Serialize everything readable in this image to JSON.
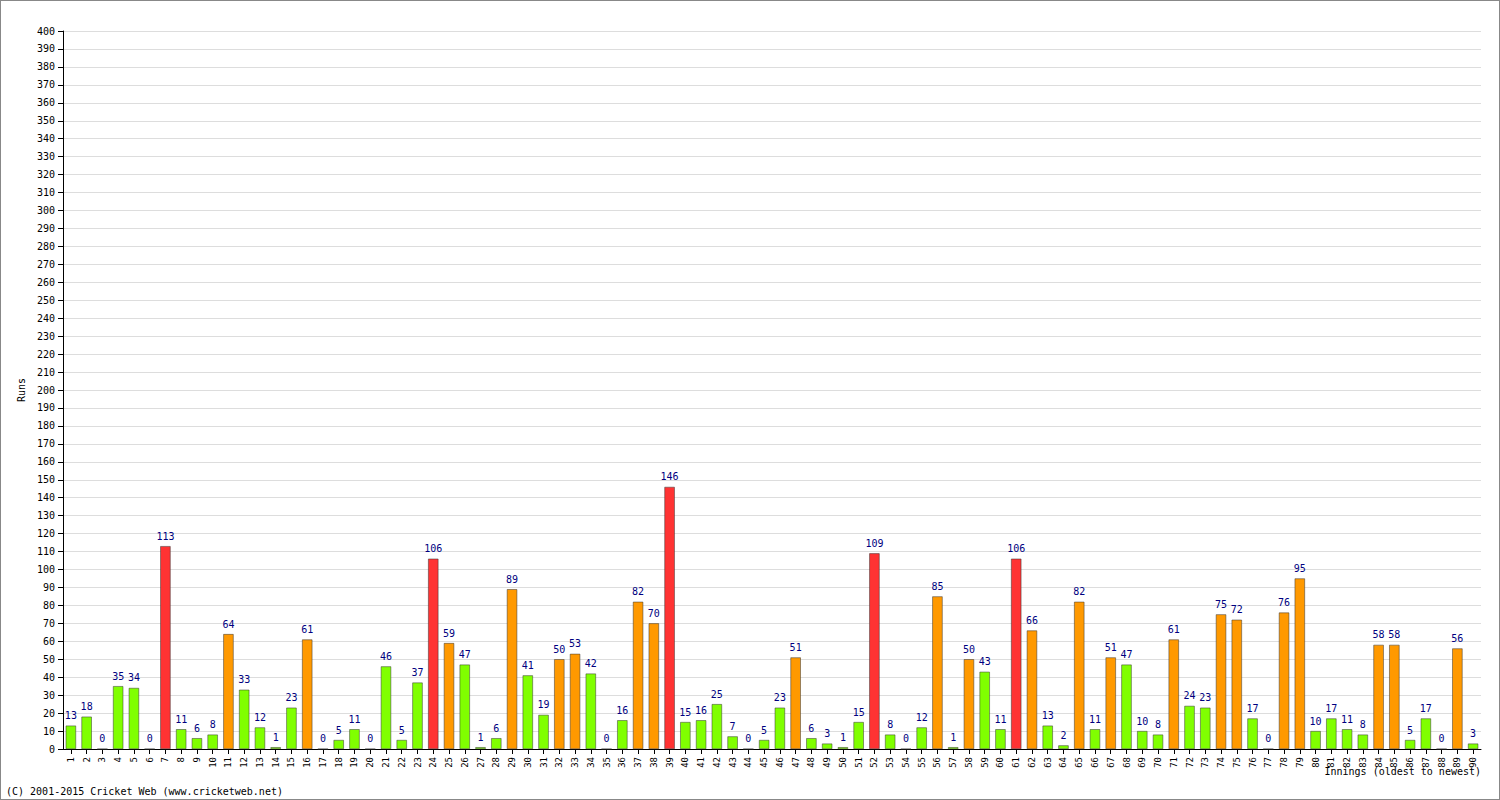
{
  "chart_data": {
    "type": "bar",
    "x_label": "Innings (oldest to newest)",
    "y_label": "Runs",
    "annotations": [
      "(C) 2001-2015 Cricket Web (www.cricketweb.net)"
    ],
    "categories": [
      "1",
      "2",
      "3",
      "4",
      "5",
      "6",
      "7",
      "8",
      "9",
      "10",
      "11",
      "12",
      "13",
      "14",
      "15",
      "16",
      "17",
      "18",
      "19",
      "20",
      "21",
      "22",
      "23",
      "24",
      "25",
      "26",
      "27",
      "28",
      "29",
      "30",
      "31",
      "32",
      "33",
      "34",
      "35",
      "36",
      "37",
      "38",
      "39",
      "40",
      "41",
      "42",
      "43",
      "44",
      "45",
      "46",
      "47",
      "48",
      "49",
      "50",
      "51",
      "52",
      "53",
      "54",
      "55",
      "56",
      "57",
      "58",
      "59",
      "60",
      "61",
      "62",
      "63",
      "64",
      "65",
      "66",
      "67",
      "68",
      "69",
      "70",
      "71",
      "72",
      "73",
      "74",
      "75",
      "76",
      "77",
      "78",
      "79",
      "80",
      "81",
      "82",
      "83",
      "84",
      "85",
      "86",
      "87",
      "88",
      "89",
      "90"
    ],
    "values": [
      13,
      18,
      0,
      35,
      34,
      0,
      113,
      11,
      6,
      8,
      64,
      33,
      12,
      1,
      23,
      61,
      0,
      5,
      11,
      0,
      46,
      5,
      37,
      106,
      59,
      47,
      1,
      6,
      89,
      41,
      19,
      50,
      53,
      42,
      0,
      16,
      82,
      70,
      146,
      15,
      16,
      25,
      7,
      0,
      5,
      23,
      51,
      6,
      3,
      1,
      15,
      109,
      8,
      0,
      12,
      85,
      1,
      50,
      43,
      11,
      106,
      66,
      13,
      2,
      82,
      11,
      51,
      47,
      10,
      8,
      61,
      24,
      23,
      75,
      72,
      17,
      0,
      76,
      95,
      10,
      17,
      11,
      8,
      58,
      58,
      5,
      17,
      0,
      56,
      3
    ],
    "colors": [
      "#80ff00",
      "#80ff00",
      "#80ff00",
      "#80ff00",
      "#80ff00",
      "#80ff00",
      "#ff3333",
      "#80ff00",
      "#80ff00",
      "#80ff00",
      "#ff9900",
      "#80ff00",
      "#80ff00",
      "#80ff00",
      "#80ff00",
      "#ff9900",
      "#80ff00",
      "#80ff00",
      "#80ff00",
      "#80ff00",
      "#80ff00",
      "#80ff00",
      "#80ff00",
      "#ff3333",
      "#ff9900",
      "#80ff00",
      "#80ff00",
      "#80ff00",
      "#ff9900",
      "#80ff00",
      "#80ff00",
      "#ff9900",
      "#ff9900",
      "#80ff00",
      "#80ff00",
      "#80ff00",
      "#ff9900",
      "#ff9900",
      "#ff3333",
      "#80ff00",
      "#80ff00",
      "#80ff00",
      "#80ff00",
      "#80ff00",
      "#80ff00",
      "#80ff00",
      "#ff9900",
      "#80ff00",
      "#80ff00",
      "#80ff00",
      "#80ff00",
      "#ff3333",
      "#80ff00",
      "#80ff00",
      "#80ff00",
      "#ff9900",
      "#80ff00",
      "#ff9900",
      "#80ff00",
      "#80ff00",
      "#ff3333",
      "#ff9900",
      "#80ff00",
      "#80ff00",
      "#ff9900",
      "#80ff00",
      "#ff9900",
      "#80ff00",
      "#80ff00",
      "#80ff00",
      "#ff9900",
      "#80ff00",
      "#80ff00",
      "#ff9900",
      "#ff9900",
      "#80ff00",
      "#80ff00",
      "#ff9900",
      "#ff9900",
      "#80ff00",
      "#80ff00",
      "#80ff00",
      "#80ff00",
      "#ff9900",
      "#ff9900",
      "#80ff00",
      "#80ff00",
      "#80ff00",
      "#ff9900",
      "#80ff00"
    ],
    "ylim": [
      0,
      400
    ],
    "yticks": [
      0,
      10,
      20,
      30,
      40,
      50,
      60,
      70,
      80,
      90,
      100,
      110,
      120,
      130,
      140,
      150,
      160,
      170,
      180,
      190,
      200,
      210,
      220,
      230,
      240,
      250,
      260,
      270,
      280,
      290,
      300,
      310,
      320,
      330,
      340,
      350,
      360,
      370,
      380,
      390,
      400
    ],
    "grid": true,
    "data_labels": true
  }
}
